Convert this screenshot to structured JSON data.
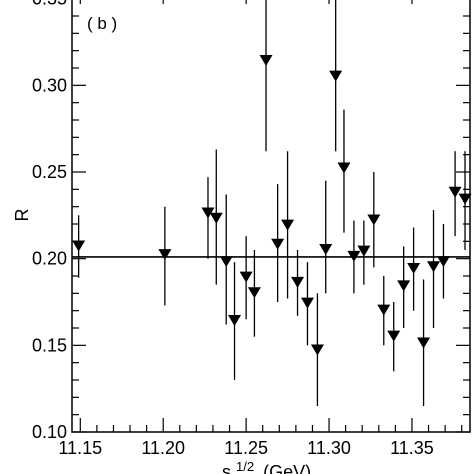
{
  "chart_data": {
    "type": "scatter",
    "panel_label": "( b )",
    "xlabel": "s^{1/2} (GeV)",
    "xlabel_base": "s",
    "xlabel_sup": "1/2",
    "xlabel_unit": "(GeV)",
    "ylabel": "R",
    "xlim": [
      11.145,
      11.385
    ],
    "ylim": [
      0.1,
      0.355
    ],
    "x_ticks": [
      11.15,
      11.2,
      11.25,
      11.3,
      11.35
    ],
    "x_tick_labels": [
      "11.15",
      "11.20",
      "11.25",
      "11.30",
      "11.35"
    ],
    "y_ticks": [
      0.1,
      0.15,
      0.2,
      0.25,
      0.3,
      0.35
    ],
    "y_tick_labels": [
      "0.10",
      "0.15",
      "0.20",
      "0.25",
      "0.30",
      "0.35"
    ],
    "reference_line": 0.201,
    "marker": "filled-down-triangle",
    "color": "#000000",
    "points": [
      {
        "x": 11.149,
        "y": 0.207,
        "lo": 0.189,
        "hi": 0.225
      },
      {
        "x": 11.201,
        "y": 0.202,
        "lo": 0.173,
        "hi": 0.23
      },
      {
        "x": 11.227,
        "y": 0.226,
        "lo": 0.2,
        "hi": 0.247
      },
      {
        "x": 11.232,
        "y": 0.223,
        "lo": 0.185,
        "hi": 0.263
      },
      {
        "x": 11.238,
        "y": 0.198,
        "lo": 0.162,
        "hi": 0.237
      },
      {
        "x": 11.243,
        "y": 0.164,
        "lo": 0.13,
        "hi": 0.198
      },
      {
        "x": 11.25,
        "y": 0.189,
        "lo": 0.165,
        "hi": 0.213
      },
      {
        "x": 11.255,
        "y": 0.18,
        "lo": 0.155,
        "hi": 0.205
      },
      {
        "x": 11.262,
        "y": 0.314,
        "lo": 0.262,
        "hi": 0.358
      },
      {
        "x": 11.269,
        "y": 0.208,
        "lo": 0.175,
        "hi": 0.243
      },
      {
        "x": 11.275,
        "y": 0.219,
        "lo": 0.177,
        "hi": 0.262
      },
      {
        "x": 11.281,
        "y": 0.186,
        "lo": 0.167,
        "hi": 0.205
      },
      {
        "x": 11.287,
        "y": 0.174,
        "lo": 0.15,
        "hi": 0.198
      },
      {
        "x": 11.293,
        "y": 0.147,
        "lo": 0.115,
        "hi": 0.18
      },
      {
        "x": 11.298,
        "y": 0.205,
        "lo": 0.18,
        "hi": 0.245
      },
      {
        "x": 11.304,
        "y": 0.305,
        "lo": 0.262,
        "hi": 0.358
      },
      {
        "x": 11.309,
        "y": 0.252,
        "lo": 0.215,
        "hi": 0.286
      },
      {
        "x": 11.315,
        "y": 0.201,
        "lo": 0.18,
        "hi": 0.222
      },
      {
        "x": 11.321,
        "y": 0.204,
        "lo": 0.185,
        "hi": 0.222
      },
      {
        "x": 11.327,
        "y": 0.222,
        "lo": 0.195,
        "hi": 0.25
      },
      {
        "x": 11.333,
        "y": 0.17,
        "lo": 0.15,
        "hi": 0.19
      },
      {
        "x": 11.339,
        "y": 0.155,
        "lo": 0.135,
        "hi": 0.175
      },
      {
        "x": 11.345,
        "y": 0.184,
        "lo": 0.16,
        "hi": 0.207
      },
      {
        "x": 11.351,
        "y": 0.194,
        "lo": 0.17,
        "hi": 0.218
      },
      {
        "x": 11.357,
        "y": 0.151,
        "lo": 0.115,
        "hi": 0.188
      },
      {
        "x": 11.363,
        "y": 0.195,
        "lo": 0.16,
        "hi": 0.228
      },
      {
        "x": 11.369,
        "y": 0.198,
        "lo": 0.177,
        "hi": 0.22
      },
      {
        "x": 11.376,
        "y": 0.238,
        "lo": 0.213,
        "hi": 0.262
      },
      {
        "x": 11.382,
        "y": 0.234,
        "lo": 0.205,
        "hi": 0.262
      }
    ]
  }
}
